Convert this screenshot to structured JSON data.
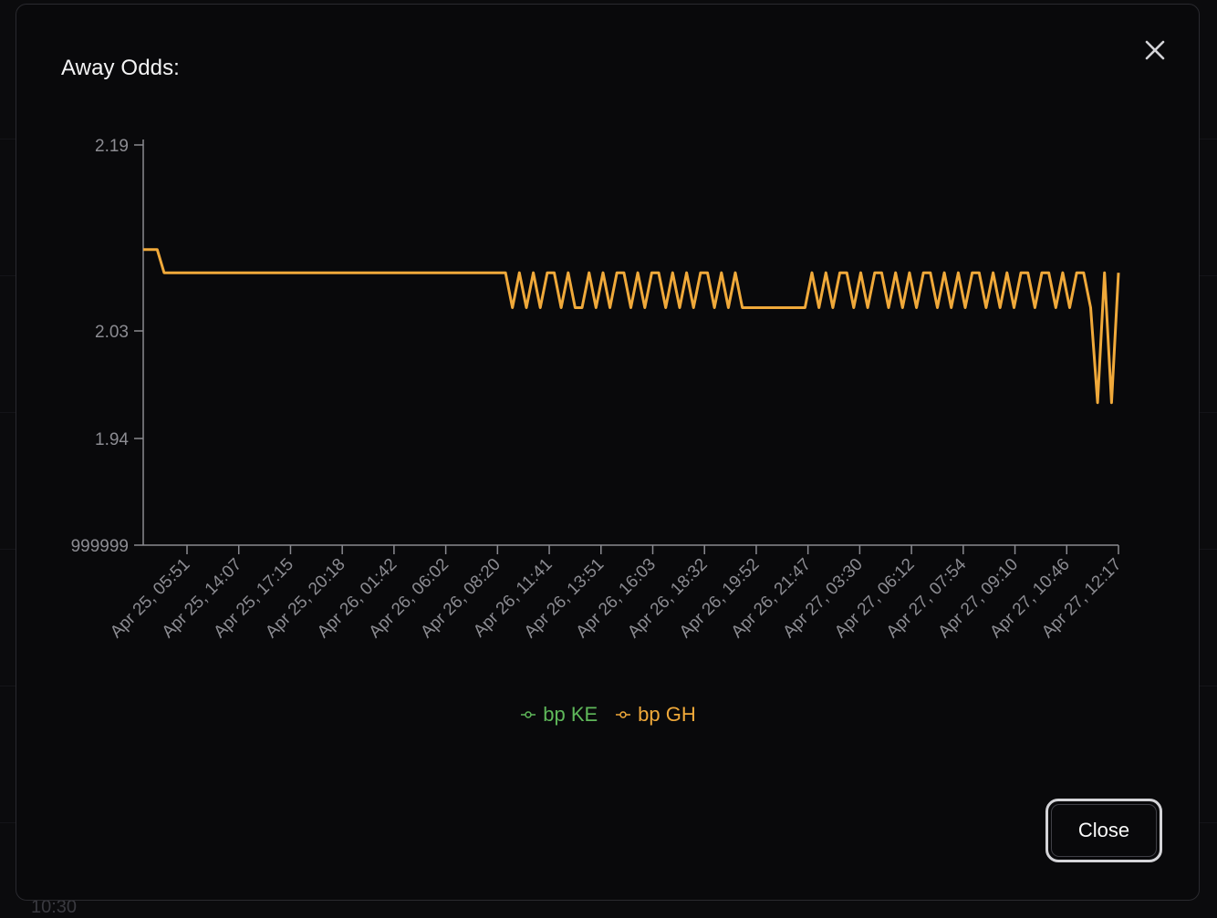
{
  "modal": {
    "title": "Away Odds:",
    "close_button_label": "Close",
    "close_icon": "close-x-icon"
  },
  "background": {
    "partial_time_text": "10:30"
  },
  "colors": {
    "line_gh": "#f0a93a",
    "legend_ke": "#5fb85a",
    "legend_gh": "#f0a93a",
    "axis": "#8a8a90",
    "tick_label": "#8c8c92"
  },
  "chart_data": {
    "type": "line",
    "title": "Away Odds:",
    "xlabel": "",
    "ylabel": "",
    "y_ticks": [
      "2.19",
      "2.03",
      "1.94",
      "999999"
    ],
    "x_ticks": [
      "Apr 25, 05:51",
      "Apr 25, 14:07",
      "Apr 25, 17:15",
      "Apr 25, 20:18",
      "Apr 26, 01:42",
      "Apr 26, 06:02",
      "Apr 26, 08:20",
      "Apr 26, 11:41",
      "Apr 26, 13:51",
      "Apr 26, 16:03",
      "Apr 26, 18:32",
      "Apr 26, 19:52",
      "Apr 26, 21:47",
      "Apr 27, 03:30",
      "Apr 27, 06:12",
      "Apr 27, 07:54",
      "Apr 27, 09:10",
      "Apr 27, 10:46",
      "Apr 27, 12:17"
    ],
    "legend": [
      "bp KE",
      "bp GH"
    ],
    "legend_position": "bottom-center",
    "grid": false,
    "series": [
      {
        "name": "bp KE",
        "color": "#5fb85a",
        "values": []
      },
      {
        "name": "bp GH",
        "color": "#f0a93a",
        "values": [
          2.1,
          2.1,
          2.1,
          2.08,
          2.08,
          2.08,
          2.08,
          2.08,
          2.08,
          2.08,
          2.08,
          2.08,
          2.08,
          2.08,
          2.08,
          2.08,
          2.08,
          2.08,
          2.08,
          2.08,
          2.08,
          2.08,
          2.08,
          2.08,
          2.08,
          2.08,
          2.08,
          2.08,
          2.08,
          2.08,
          2.08,
          2.08,
          2.08,
          2.08,
          2.08,
          2.08,
          2.08,
          2.08,
          2.08,
          2.08,
          2.08,
          2.08,
          2.08,
          2.08,
          2.08,
          2.08,
          2.08,
          2.08,
          2.08,
          2.08,
          2.08,
          2.08,
          2.08,
          2.05,
          2.08,
          2.05,
          2.08,
          2.05,
          2.08,
          2.08,
          2.05,
          2.08,
          2.05,
          2.05,
          2.08,
          2.05,
          2.08,
          2.05,
          2.08,
          2.08,
          2.05,
          2.08,
          2.05,
          2.08,
          2.08,
          2.05,
          2.08,
          2.05,
          2.08,
          2.05,
          2.08,
          2.08,
          2.05,
          2.08,
          2.05,
          2.08,
          2.05,
          2.05,
          2.05,
          2.05,
          2.05,
          2.05,
          2.05,
          2.05,
          2.05,
          2.05,
          2.08,
          2.05,
          2.08,
          2.05,
          2.08,
          2.08,
          2.05,
          2.08,
          2.05,
          2.08,
          2.08,
          2.05,
          2.08,
          2.05,
          2.08,
          2.05,
          2.08,
          2.08,
          2.05,
          2.08,
          2.05,
          2.08,
          2.05,
          2.08,
          2.08,
          2.05,
          2.08,
          2.05,
          2.08,
          2.05,
          2.08,
          2.08,
          2.05,
          2.08,
          2.08,
          2.05,
          2.08,
          2.05,
          2.08,
          2.08,
          2.05,
          1.97,
          2.08,
          1.97,
          2.08
        ]
      }
    ]
  }
}
